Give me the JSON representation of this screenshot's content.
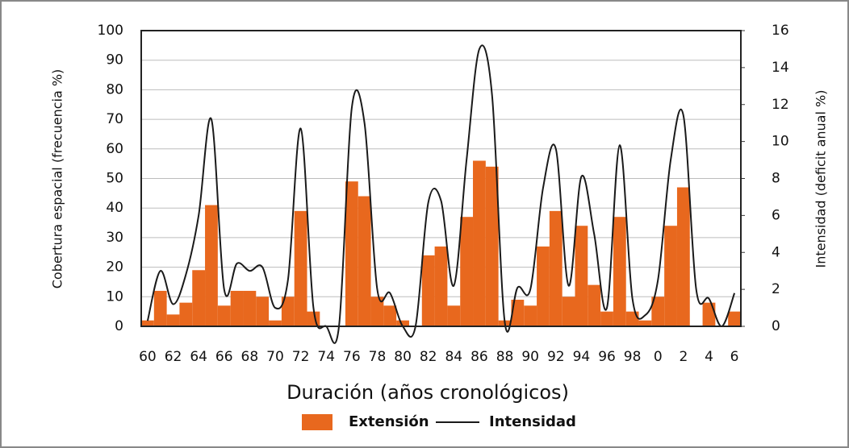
{
  "chart_data": {
    "type": "bar",
    "xlabel": "Duración (años cronológicos)",
    "ylabel": "Cobertura espacial (frecuencia %)",
    "y2label": "Intensidad (deficit anual %)",
    "categories": [
      "60",
      null,
      "62",
      null,
      "64",
      null,
      "66",
      null,
      "68",
      null,
      "70",
      null,
      "72",
      null,
      "74",
      null,
      "76",
      null,
      "78",
      null,
      "80",
      null,
      "82",
      null,
      "84",
      null,
      "86",
      null,
      "88",
      null,
      "90",
      null,
      "92",
      null,
      "94",
      null,
      "96",
      null,
      "98",
      null,
      "0",
      null,
      "2",
      null,
      "4",
      null,
      "6"
    ],
    "series": [
      {
        "name": "Extensión",
        "type": "bar",
        "color": "#e8681e",
        "values": [
          2,
          12,
          4,
          8,
          19,
          41,
          7,
          12,
          12,
          10,
          2,
          10,
          39,
          5,
          0,
          0,
          49,
          44,
          10,
          7,
          2,
          0,
          24,
          27,
          7,
          37,
          56,
          54,
          2,
          9,
          7,
          27,
          39,
          10,
          34,
          14,
          5,
          37,
          5,
          2,
          10,
          34,
          47,
          0,
          8,
          0,
          5
        ]
      },
      {
        "name": "Intensidad",
        "type": "line",
        "axis": "y2",
        "color": "#1a1a1a",
        "values": [
          0.3,
          3,
          1.2,
          2.8,
          6,
          11.2,
          2,
          3.4,
          3,
          3.2,
          1,
          2.5,
          10.7,
          1,
          0,
          0,
          11.8,
          11,
          2,
          1.8,
          0,
          0,
          6.7,
          6.8,
          2.2,
          9,
          15,
          12.5,
          0.2,
          2.1,
          2,
          7.5,
          9.6,
          2.2,
          8.1,
          5,
          1,
          9.8,
          1.5,
          0.6,
          2.5,
          9,
          11.4,
          2,
          1.5,
          0,
          1.8
        ]
      }
    ],
    "ylim": [
      0,
      100
    ],
    "yticks": [
      0,
      10,
      20,
      30,
      40,
      50,
      60,
      70,
      80,
      90,
      100
    ],
    "y2lim": [
      0,
      16
    ],
    "y2ticks": [
      0,
      2,
      4,
      6,
      8,
      10,
      12,
      14,
      16
    ],
    "grid": true
  }
}
